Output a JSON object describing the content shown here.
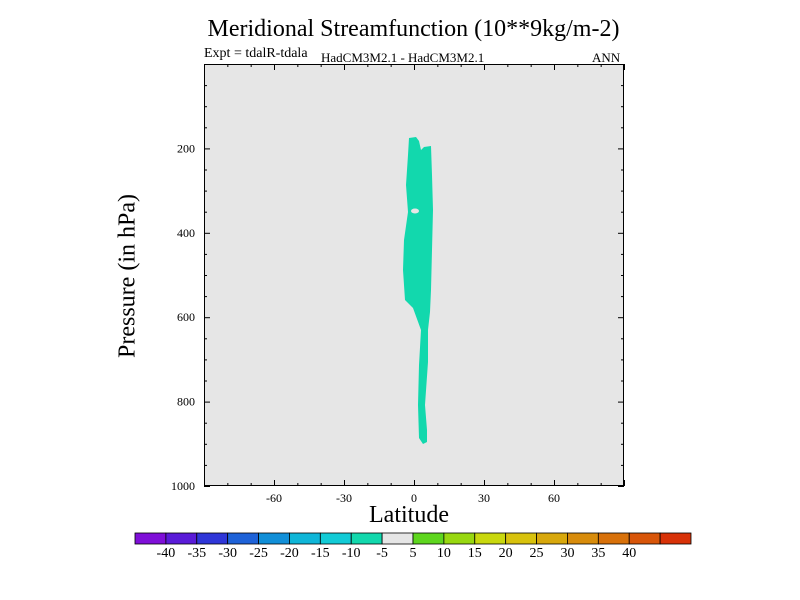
{
  "chart_data": {
    "type": "heatmap",
    "title": "Meridional Streamfunction (10**9kg/m-2)",
    "subtitle_left": "Expt = tdalR-tdala",
    "subtitle_center": "HadCM3M2.1 - HadCM3M2.1",
    "subtitle_right": "ANN",
    "xlabel": "Latitude",
    "ylabel": "Pressure (in hPa)",
    "xlim": [
      -90,
      90
    ],
    "ylim": [
      1000,
      0
    ],
    "x_ticks": [
      -60,
      -30,
      0,
      30,
      60
    ],
    "y_ticks": [
      200,
      400,
      600,
      800,
      1000
    ],
    "background_value_range": [
      -5,
      5
    ],
    "filled_region": {
      "range": [
        -10,
        -5
      ],
      "color": "#12d8ad",
      "approx_lat_range": [
        -4,
        8
      ],
      "approx_pressure_range": [
        175,
        900
      ]
    },
    "colorbar": {
      "colors": [
        "#7f0fd8",
        "#5a1bd8",
        "#2f36d8",
        "#1e62d8",
        "#118fd8",
        "#0fb6d8",
        "#12cbd6",
        "#12d8ad",
        "#e6e6e6",
        "#5ed61e",
        "#98d810",
        "#c9d80e",
        "#d8c20d",
        "#d8a80c",
        "#d88c0b",
        "#d8710a",
        "#d85509",
        "#d83208"
      ],
      "labels": [
        "-40",
        "-35",
        "-30",
        "-25",
        "-20",
        "-15",
        "-10",
        "-5",
        "5",
        "10",
        "15",
        "20",
        "25",
        "30",
        "35",
        "40"
      ]
    }
  }
}
